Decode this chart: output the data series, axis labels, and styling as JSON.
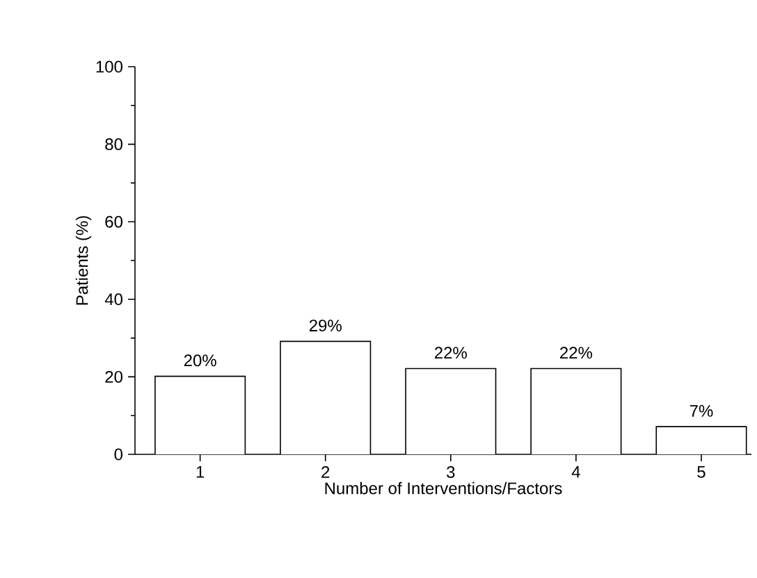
{
  "chart_data": {
    "type": "bar",
    "xlabel": "Number of Interventions/Factors",
    "ylabel": "Patients (%)",
    "categories": [
      "1",
      "2",
      "3",
      "4",
      "5"
    ],
    "values": [
      20,
      29,
      22,
      22,
      7
    ],
    "value_labels": [
      "20%",
      "29%",
      "22%",
      "22%",
      "7%"
    ],
    "color": "#ffffff",
    "ylim": [
      0,
      100
    ],
    "yticks": [
      0,
      20,
      40,
      60,
      80,
      100
    ],
    "grid": false
  }
}
